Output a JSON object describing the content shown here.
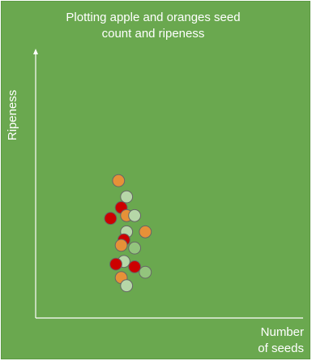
{
  "chart_data": {
    "type": "scatter",
    "title_lines": [
      "Plotting apple and oranges seed",
      "count and ripeness"
    ],
    "xlabel_lines": [
      "Number",
      "of seeds"
    ],
    "ylabel": "Ripeness",
    "background_color": "#6aa84f",
    "axis_color": "#ffffff",
    "x_axis_visible": true,
    "y_axis_visible": true,
    "grid": false,
    "legend": "none",
    "point_style": {
      "stroke": "#666666",
      "colors": {
        "orange": "#e69138",
        "red": "#cc0000",
        "light-green": "#b6d7a8",
        "green": "#93c47d"
      }
    },
    "series": [
      {
        "points": [
          {
            "x": 0.31,
            "y": 0.51,
            "color": "orange"
          },
          {
            "x": 0.34,
            "y": 0.45,
            "color": "light-green"
          },
          {
            "x": 0.32,
            "y": 0.41,
            "color": "red"
          },
          {
            "x": 0.28,
            "y": 0.37,
            "color": "red"
          },
          {
            "x": 0.34,
            "y": 0.38,
            "color": "orange"
          },
          {
            "x": 0.37,
            "y": 0.38,
            "color": "light-green"
          },
          {
            "x": 0.34,
            "y": 0.32,
            "color": "light-green"
          },
          {
            "x": 0.41,
            "y": 0.32,
            "color": "orange"
          },
          {
            "x": 0.33,
            "y": 0.29,
            "color": "red"
          },
          {
            "x": 0.32,
            "y": 0.27,
            "color": "orange"
          },
          {
            "x": 0.37,
            "y": 0.26,
            "color": "green"
          },
          {
            "x": 0.33,
            "y": 0.21,
            "color": "light-green"
          },
          {
            "x": 0.3,
            "y": 0.2,
            "color": "red"
          },
          {
            "x": 0.37,
            "y": 0.19,
            "color": "red"
          },
          {
            "x": 0.41,
            "y": 0.17,
            "color": "green"
          },
          {
            "x": 0.32,
            "y": 0.15,
            "color": "orange"
          },
          {
            "x": 0.34,
            "y": 0.12,
            "color": "light-green"
          }
        ]
      }
    ]
  }
}
